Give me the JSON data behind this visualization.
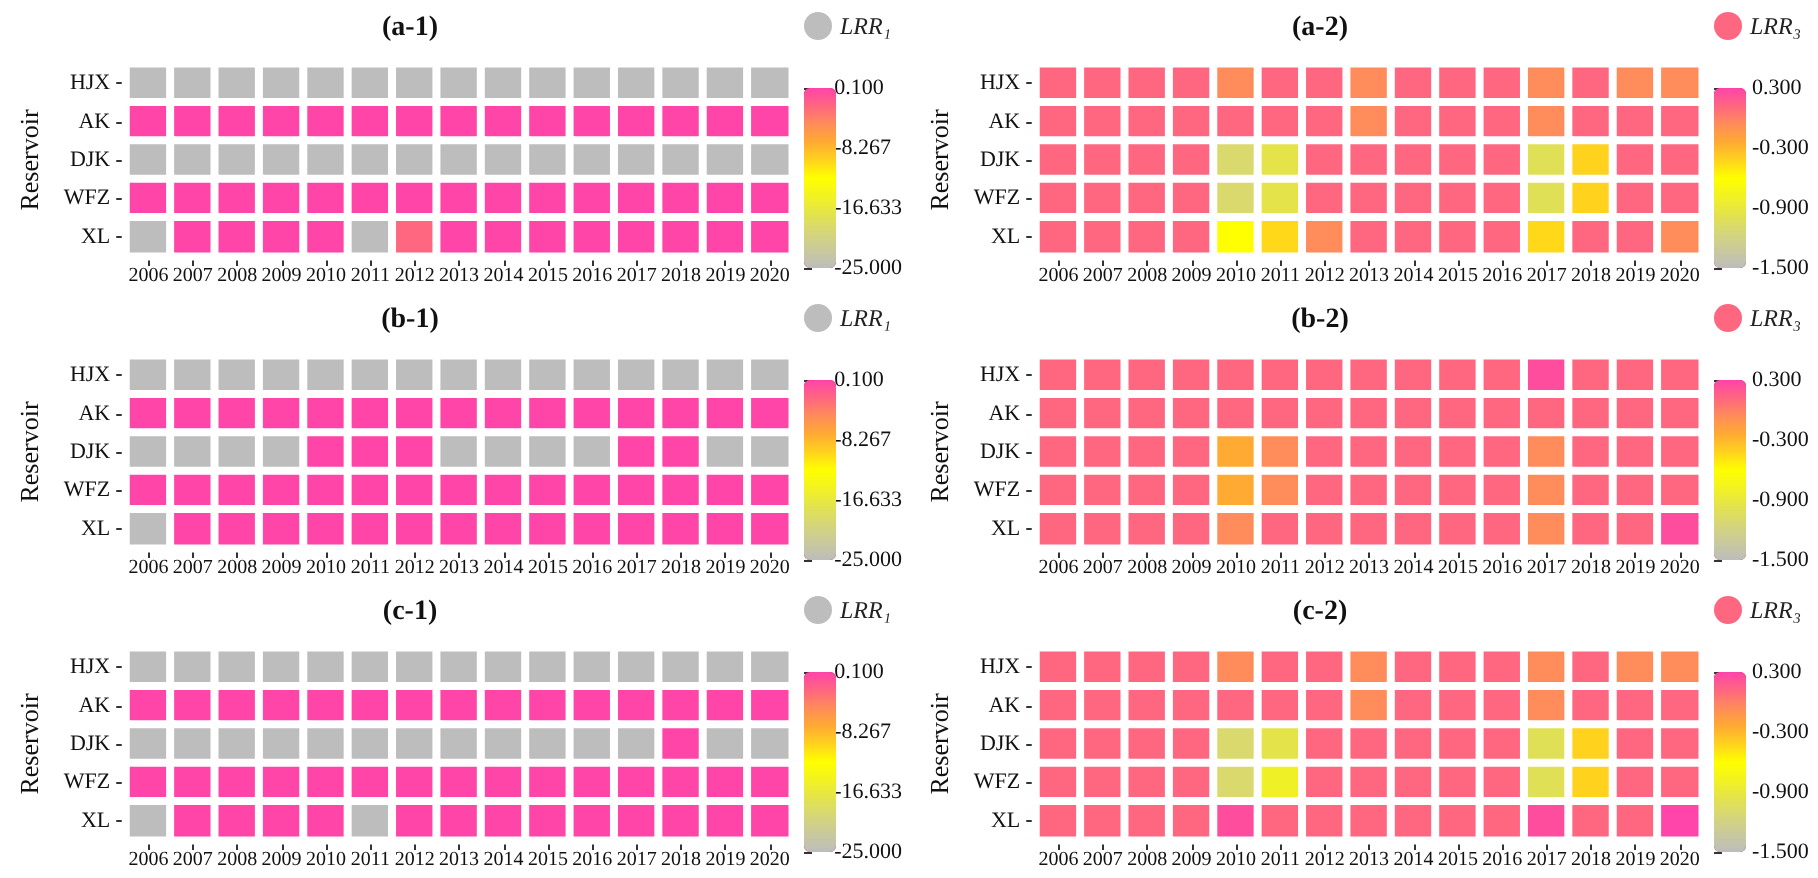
{
  "chart_data": [
    {
      "type": "heatmap",
      "title": "(a-1)",
      "ylabel": "Reservoir",
      "clabel": "LRR₁",
      "categories": [
        "2006",
        "2007",
        "2008",
        "2009",
        "2010",
        "2011",
        "2012",
        "2013",
        "2014",
        "2015",
        "2016",
        "2017",
        "2018",
        "2019",
        "2020"
      ],
      "y_categories": [
        "HJX",
        "AK",
        "DJK",
        "WFZ",
        "XL"
      ],
      "cells": [
        [
          -25,
          -25,
          -25,
          -25,
          -25,
          -25,
          -25,
          -25,
          -25,
          -25,
          -25,
          -25,
          -25,
          -25,
          -25
        ],
        [
          0,
          0,
          0,
          0,
          0,
          0,
          0,
          0,
          0,
          0,
          0,
          0,
          0,
          0,
          0
        ],
        [
          -25,
          -25,
          -25,
          -25,
          -25,
          -25,
          -25,
          -25,
          -25,
          -25,
          -25,
          -25,
          -25,
          -25,
          -25
        ],
        [
          0,
          0,
          0,
          0,
          0,
          0,
          0,
          0,
          0,
          0,
          0,
          0,
          0,
          0,
          0
        ],
        [
          -25,
          0,
          0,
          0,
          0,
          -25,
          -2.4,
          0,
          0,
          0,
          0,
          0,
          0,
          0,
          0
        ]
      ],
      "clim": [
        -25,
        0.1
      ],
      "cticks": [
        {
          "value": 0.1,
          "label": "0.100"
        },
        {
          "value": -8.267,
          "label": "-8.267"
        },
        {
          "value": -16.633,
          "label": "-16.633"
        },
        {
          "value": -25,
          "label": "-25.000"
        }
      ]
    },
    {
      "type": "heatmap",
      "title": "(a-2)",
      "ylabel": "Reservoir",
      "clabel": "LRR₃",
      "categories": [
        "2006",
        "2007",
        "2008",
        "2009",
        "2010",
        "2011",
        "2012",
        "2013",
        "2014",
        "2015",
        "2016",
        "2017",
        "2018",
        "2019",
        "2020"
      ],
      "y_categories": [
        "HJX",
        "AK",
        "DJK",
        "WFZ",
        "XL"
      ],
      "cells": [
        [
          0.12,
          0.12,
          0.12,
          0.12,
          -0.06,
          0.12,
          0.12,
          -0.06,
          0.12,
          0.12,
          0.12,
          -0.06,
          0.12,
          -0.06,
          -0.06
        ],
        [
          0.12,
          0.12,
          0.12,
          0.12,
          0.12,
          0.12,
          0.12,
          -0.06,
          0.12,
          0.12,
          0.12,
          -0.06,
          0.12,
          0.12,
          0.12
        ],
        [
          0.12,
          0.12,
          0.12,
          0.12,
          -1.1,
          -0.95,
          0.12,
          0.12,
          0.12,
          0.12,
          0.12,
          -1.0,
          -0.42,
          0.12,
          0.12
        ],
        [
          0.12,
          0.12,
          0.12,
          0.12,
          -1.1,
          -0.95,
          0.12,
          0.12,
          0.12,
          0.12,
          0.12,
          -1.0,
          -0.42,
          0.12,
          0.12
        ],
        [
          0.12,
          0.12,
          0.12,
          0.12,
          -0.6,
          -0.45,
          -0.06,
          0.12,
          0.12,
          0.12,
          0.12,
          -0.45,
          0.12,
          0.12,
          -0.06
        ]
      ],
      "clim": [
        -1.5,
        0.3
      ],
      "cticks": [
        {
          "value": 0.3,
          "label": "0.300"
        },
        {
          "value": -0.3,
          "label": "-0.300"
        },
        {
          "value": -0.9,
          "label": "-0.900"
        },
        {
          "value": -1.5,
          "label": "-1.500"
        }
      ]
    },
    {
      "type": "heatmap",
      "title": "(b-1)",
      "ylabel": "Reservoir",
      "clabel": "LRR₁",
      "categories": [
        "2006",
        "2007",
        "2008",
        "2009",
        "2010",
        "2011",
        "2012",
        "2013",
        "2014",
        "2015",
        "2016",
        "2017",
        "2018",
        "2019",
        "2020"
      ],
      "y_categories": [
        "HJX",
        "AK",
        "DJK",
        "WFZ",
        "XL"
      ],
      "cells": [
        [
          -25,
          -25,
          -25,
          -25,
          -25,
          -25,
          -25,
          -25,
          -25,
          -25,
          -25,
          -25,
          -25,
          -25,
          -25
        ],
        [
          0,
          0,
          0,
          0,
          0,
          0,
          0,
          0,
          0,
          0,
          0,
          0,
          0,
          0,
          0
        ],
        [
          -25,
          -25,
          -25,
          -25,
          0,
          0,
          0,
          -25,
          -25,
          -25,
          -25,
          0,
          0,
          -25,
          -25
        ],
        [
          0,
          0,
          0,
          0,
          0,
          0,
          0,
          0,
          0,
          0,
          0,
          0,
          0,
          0,
          0
        ],
        [
          -25,
          0,
          0,
          0,
          0,
          0,
          0,
          0,
          0,
          0,
          0,
          0,
          0,
          0,
          0
        ]
      ],
      "clim": [
        -25,
        0.1
      ],
      "cticks": [
        {
          "value": 0.1,
          "label": "0.100"
        },
        {
          "value": -8.267,
          "label": "-8.267"
        },
        {
          "value": -16.633,
          "label": "-16.633"
        },
        {
          "value": -25,
          "label": "-25.000"
        }
      ]
    },
    {
      "type": "heatmap",
      "title": "(b-2)",
      "ylabel": "Reservoir",
      "clabel": "LRR₃",
      "categories": [
        "2006",
        "2007",
        "2008",
        "2009",
        "2010",
        "2011",
        "2012",
        "2013",
        "2014",
        "2015",
        "2016",
        "2017",
        "2018",
        "2019",
        "2020"
      ],
      "y_categories": [
        "HJX",
        "AK",
        "DJK",
        "WFZ",
        "XL"
      ],
      "cells": [
        [
          0.12,
          0.12,
          0.12,
          0.12,
          0.12,
          0.12,
          0.12,
          0.12,
          0.12,
          0.12,
          0.12,
          0.25,
          0.12,
          0.12,
          0.12
        ],
        [
          0.12,
          0.12,
          0.12,
          0.12,
          0.12,
          0.12,
          0.12,
          0.12,
          0.12,
          0.12,
          0.12,
          0.12,
          0.12,
          0.12,
          0.12
        ],
        [
          0.12,
          0.12,
          0.12,
          0.12,
          -0.24,
          -0.06,
          0.12,
          0.12,
          0.12,
          0.12,
          0.12,
          -0.06,
          0.12,
          0.12,
          0.12
        ],
        [
          0.12,
          0.12,
          0.12,
          0.12,
          -0.24,
          -0.06,
          0.12,
          0.12,
          0.12,
          0.12,
          0.12,
          -0.06,
          0.12,
          0.12,
          0.12
        ],
        [
          0.12,
          0.12,
          0.12,
          0.12,
          -0.06,
          0.12,
          0.12,
          0.12,
          0.12,
          0.12,
          0.12,
          -0.06,
          0.12,
          0.12,
          0.25
        ]
      ],
      "clim": [
        -1.5,
        0.3
      ],
      "cticks": [
        {
          "value": 0.3,
          "label": "0.300"
        },
        {
          "value": -0.3,
          "label": "-0.300"
        },
        {
          "value": -0.9,
          "label": "-0.900"
        },
        {
          "value": -1.5,
          "label": "-1.500"
        }
      ]
    },
    {
      "type": "heatmap",
      "title": "(c-1)",
      "ylabel": "Reservoir",
      "clabel": "LRR₁",
      "categories": [
        "2006",
        "2007",
        "2008",
        "2009",
        "2010",
        "2011",
        "2012",
        "2013",
        "2014",
        "2015",
        "2016",
        "2017",
        "2018",
        "2019",
        "2020"
      ],
      "y_categories": [
        "HJX",
        "AK",
        "DJK",
        "WFZ",
        "XL"
      ],
      "cells": [
        [
          -25,
          -25,
          -25,
          -25,
          -25,
          -25,
          -25,
          -25,
          -25,
          -25,
          -25,
          -25,
          -25,
          -25,
          -25
        ],
        [
          0,
          0,
          0,
          0,
          0,
          0,
          0,
          0,
          0,
          0,
          0,
          0,
          0,
          0,
          0
        ],
        [
          -25,
          -25,
          -25,
          -25,
          -25,
          -25,
          -25,
          -25,
          -25,
          -25,
          -25,
          -25,
          0,
          -25,
          -25
        ],
        [
          0,
          0,
          0,
          0,
          0,
          0,
          0,
          0,
          0,
          0,
          0,
          0,
          0,
          0,
          0
        ],
        [
          -25,
          0,
          0,
          0,
          0,
          -25,
          0,
          0,
          0,
          0,
          0,
          0,
          0,
          0,
          0
        ]
      ],
      "clim": [
        -25,
        0.1
      ],
      "cticks": [
        {
          "value": 0.1,
          "label": "0.100"
        },
        {
          "value": -8.267,
          "label": "-8.267"
        },
        {
          "value": -16.633,
          "label": "-16.633"
        },
        {
          "value": -25,
          "label": "-25.000"
        }
      ]
    },
    {
      "type": "heatmap",
      "title": "(c-2)",
      "ylabel": "Reservoir",
      "clabel": "LRR₃",
      "categories": [
        "2006",
        "2007",
        "2008",
        "2009",
        "2010",
        "2011",
        "2012",
        "2013",
        "2014",
        "2015",
        "2016",
        "2017",
        "2018",
        "2019",
        "2020"
      ],
      "y_categories": [
        "HJX",
        "AK",
        "DJK",
        "WFZ",
        "XL"
      ],
      "cells": [
        [
          0.12,
          0.12,
          0.12,
          0.12,
          -0.06,
          0.12,
          0.12,
          -0.06,
          0.12,
          0.12,
          0.12,
          -0.06,
          0.12,
          -0.06,
          -0.06
        ],
        [
          0.12,
          0.12,
          0.12,
          0.12,
          0.12,
          0.12,
          0.12,
          -0.06,
          0.12,
          0.12,
          0.12,
          -0.06,
          0.12,
          0.12,
          0.12
        ],
        [
          0.12,
          0.12,
          0.12,
          0.12,
          -1.1,
          -0.95,
          0.12,
          0.12,
          0.12,
          0.12,
          0.12,
          -1.0,
          -0.42,
          0.12,
          0.12
        ],
        [
          0.12,
          0.12,
          0.12,
          0.12,
          -1.1,
          -0.8,
          0.12,
          0.12,
          0.12,
          0.12,
          0.12,
          -1.0,
          -0.42,
          0.12,
          0.12
        ],
        [
          0.12,
          0.12,
          0.12,
          0.12,
          0.25,
          0.12,
          0.12,
          0.12,
          0.12,
          0.12,
          0.12,
          0.25,
          0.12,
          0.12,
          0.3
        ]
      ],
      "clim": [
        -1.5,
        0.3
      ],
      "cticks": [
        {
          "value": 0.3,
          "label": "0.300"
        },
        {
          "value": -0.3,
          "label": "-0.300"
        },
        {
          "value": -0.9,
          "label": "-0.900"
        },
        {
          "value": -1.5,
          "label": "-1.500"
        }
      ]
    }
  ]
}
